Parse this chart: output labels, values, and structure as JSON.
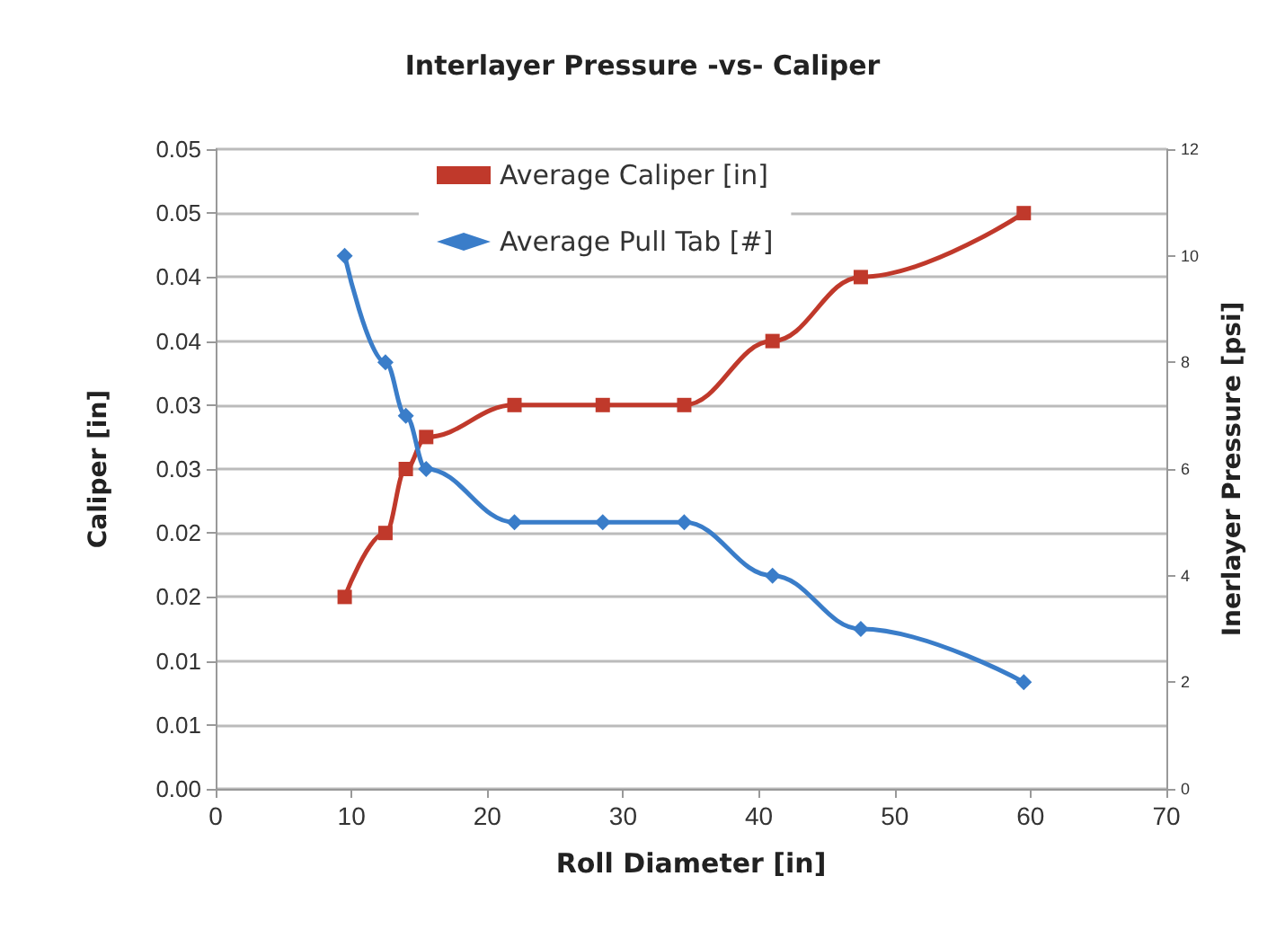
{
  "chart_data": {
    "type": "line",
    "title": "Interlayer Pressure -vs- Caliper",
    "xlabel": "Roll Diameter [in]",
    "ylabel": "Caliper [in]",
    "y2label": "Inerlayer Pressure [psi]",
    "x": [
      9.5,
      12.5,
      14,
      15.5,
      22,
      28.5,
      34.5,
      41,
      47.5,
      59.5
    ],
    "series": [
      {
        "name": "Average Caliper [in]",
        "color": "#c0392b",
        "marker": "square",
        "values": [
          0.015,
          0.02,
          0.025,
          0.0275,
          0.03,
          0.03,
          0.03,
          0.035,
          0.04,
          0.045
        ]
      },
      {
        "name": "Average Pull Tab [#]",
        "color": "#3a7dc9",
        "marker": "diamond",
        "axis": "y2",
        "values": [
          10,
          8,
          7,
          6,
          5,
          5,
          5,
          4,
          3,
          2
        ]
      }
    ],
    "xlim": [
      0,
      70
    ],
    "xticks": [
      0,
      10,
      20,
      30,
      40,
      50,
      60,
      70
    ],
    "ylim": [
      0,
      0.05
    ],
    "yticks": [
      {
        "value": 0,
        "label": "0.00"
      },
      {
        "value": 0.005,
        "label": "0.01"
      },
      {
        "value": 0.01,
        "label": "0.01"
      },
      {
        "value": 0.015,
        "label": "0.02"
      },
      {
        "value": 0.02,
        "label": "0.02"
      },
      {
        "value": 0.025,
        "label": "0.03"
      },
      {
        "value": 0.03,
        "label": "0.03"
      },
      {
        "value": 0.035,
        "label": "0.04"
      },
      {
        "value": 0.04,
        "label": "0.04"
      },
      {
        "value": 0.045,
        "label": "0.05"
      },
      {
        "value": 0.05,
        "label": "0.05"
      }
    ],
    "y2lim": [
      0,
      12
    ],
    "y2ticks": [
      0,
      2,
      4,
      6,
      8,
      10,
      12
    ],
    "grid": "y",
    "legend": "top",
    "line_style": "solid"
  }
}
